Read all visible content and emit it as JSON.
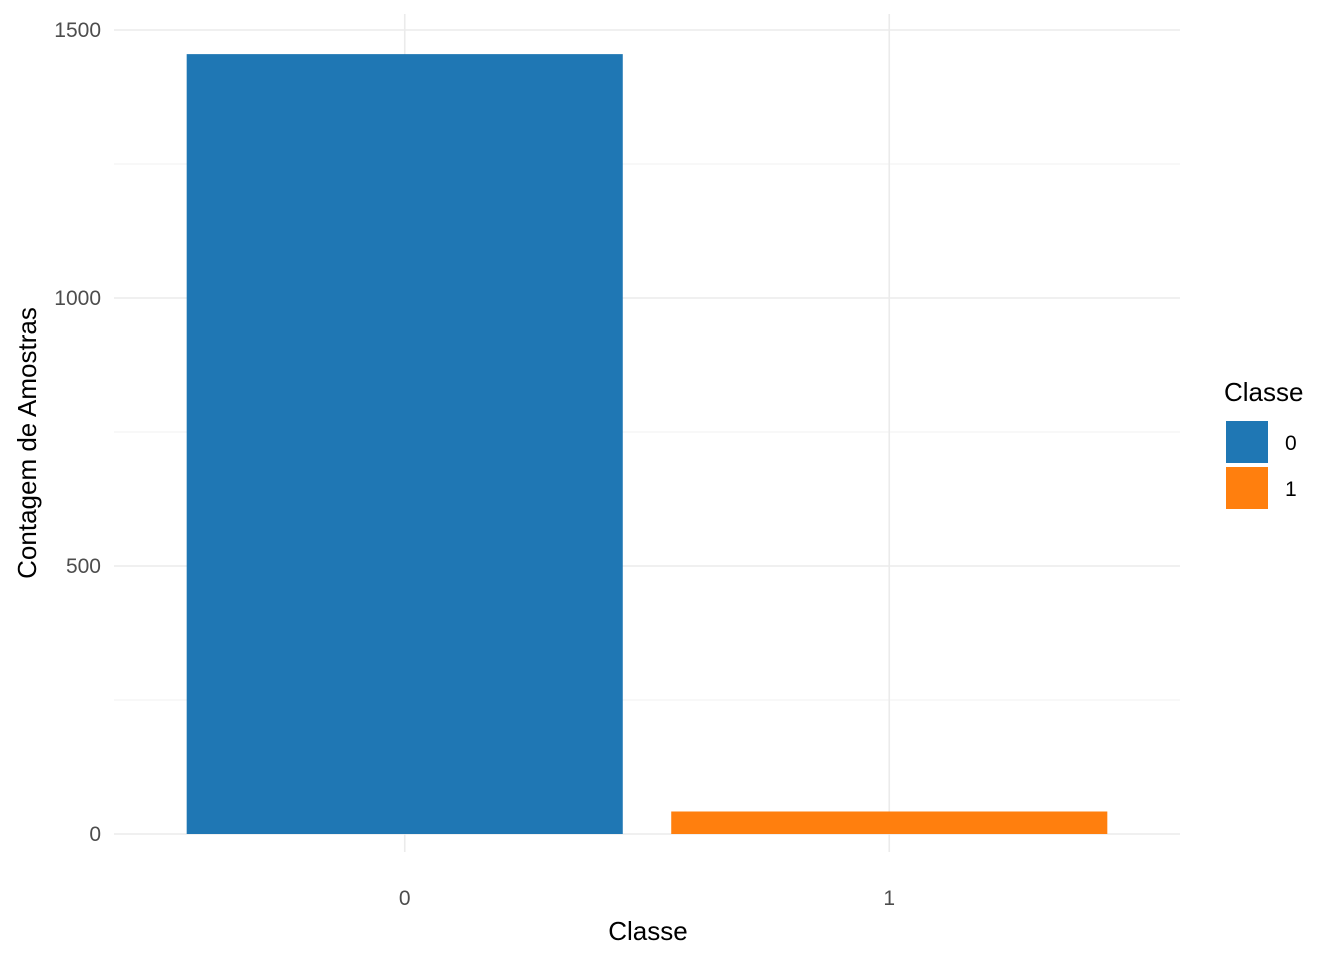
{
  "chart_data": {
    "type": "bar",
    "categories": [
      "0",
      "1"
    ],
    "values": [
      1455,
      42
    ],
    "colors": [
      "#1f77b4",
      "#ff7f0e"
    ],
    "xlabel": "Classe",
    "ylabel": "Contagem de Amostras",
    "ylim": [
      0,
      1530
    ],
    "yticks": [
      0,
      500,
      1000,
      1500
    ],
    "yticks_minor": [
      250,
      750,
      1250
    ],
    "grid": true,
    "legend": {
      "title": "Classe",
      "position": "right",
      "entries": [
        "0",
        "1"
      ]
    }
  }
}
